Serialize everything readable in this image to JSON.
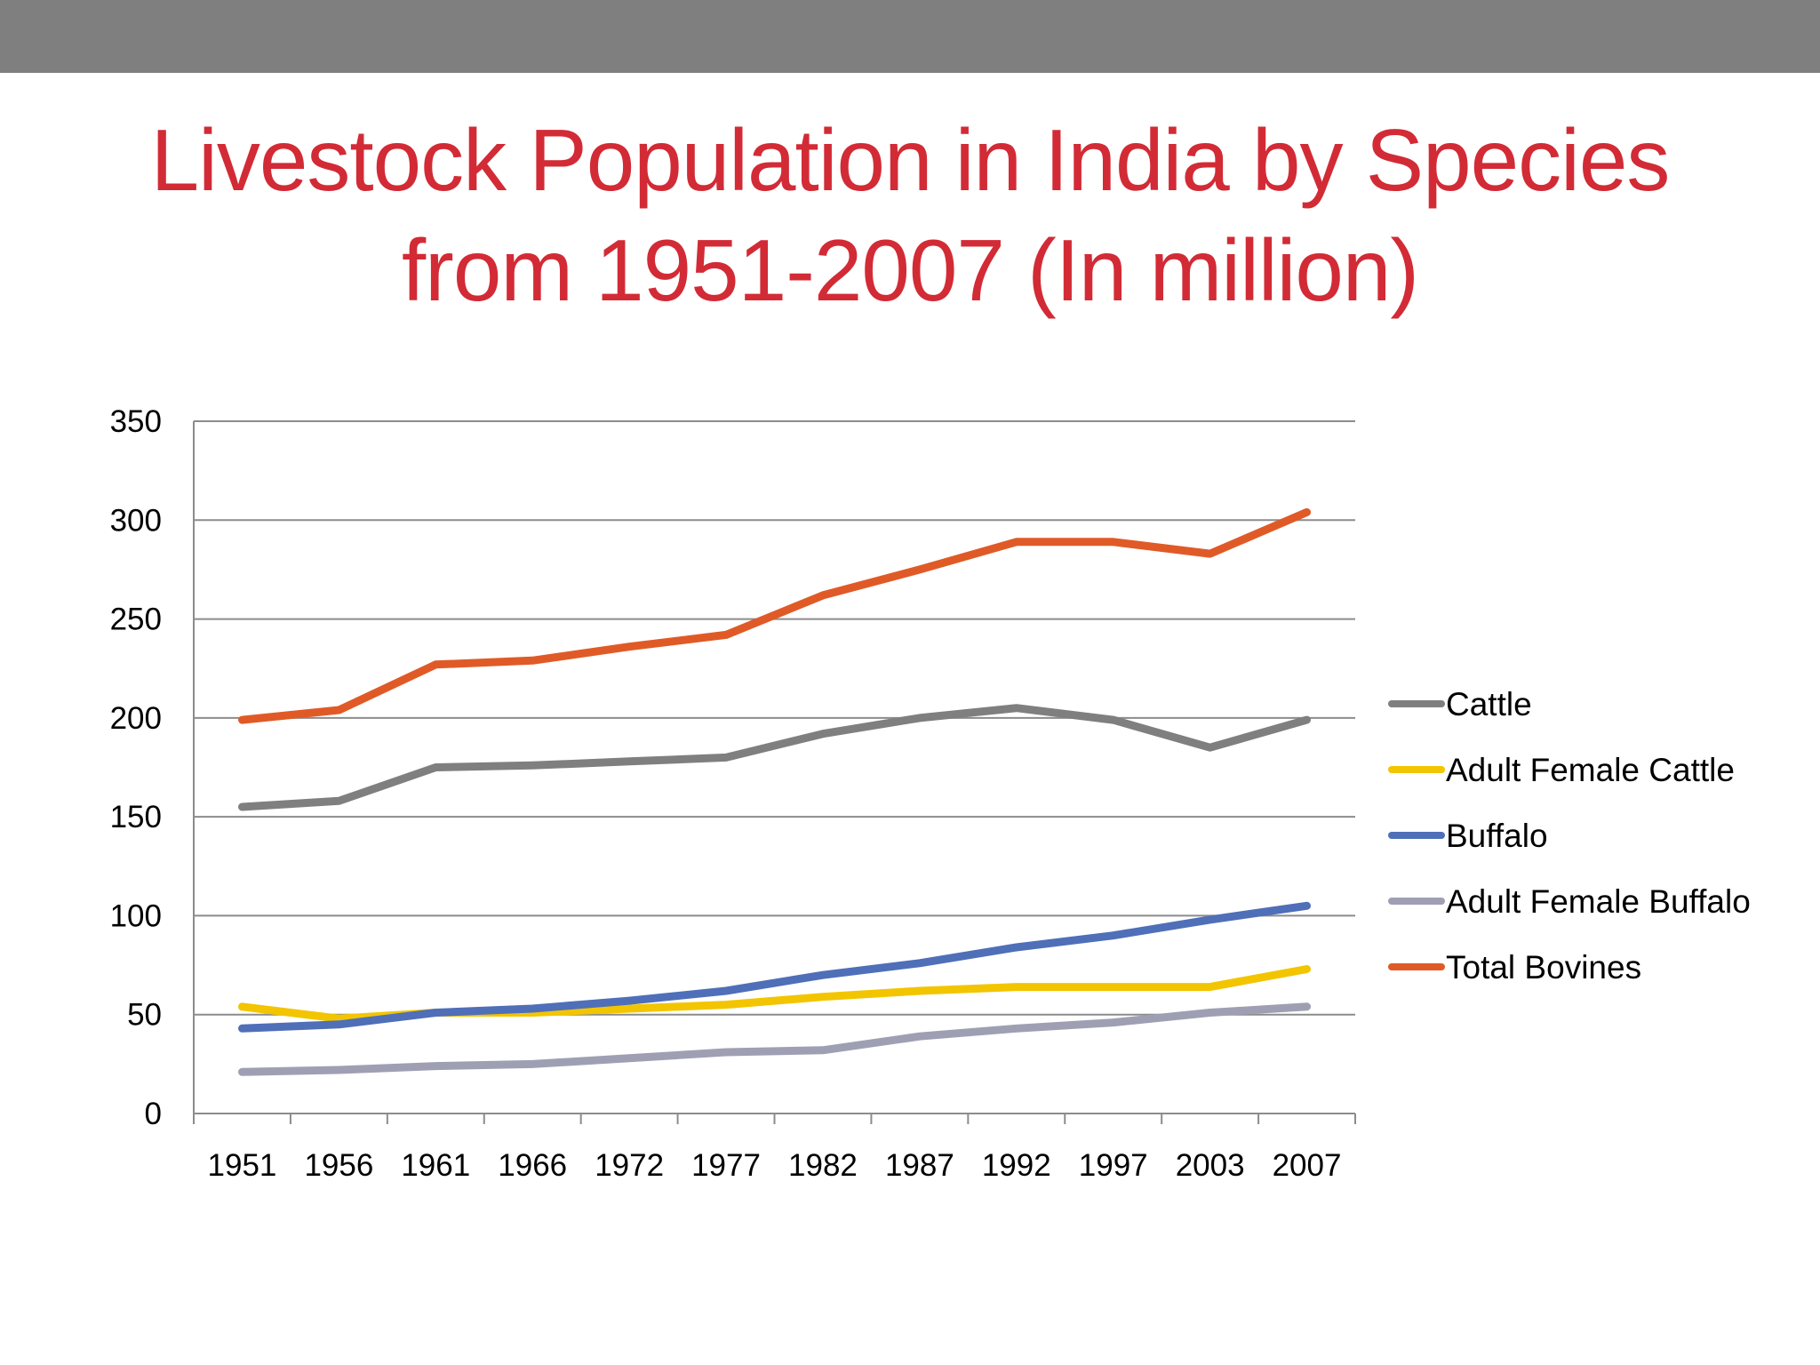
{
  "slide": {
    "title_line1": "Livestock Population in India by Species",
    "title_line2": "from 1951-2007 (In million)",
    "title_color": "#d22b36",
    "top_bar_color": "#7f7f7f"
  },
  "chart_data": {
    "type": "line",
    "title": "Livestock Population in India by Species from 1951-2007 (In million)",
    "xlabel": "",
    "ylabel": "",
    "ylim": [
      0,
      350
    ],
    "yticks": [
      0,
      50,
      100,
      150,
      200,
      250,
      300,
      350
    ],
    "grid": true,
    "legend": "right",
    "categories": [
      "1951",
      "1956",
      "1961",
      "1966",
      "1972",
      "1977",
      "1982",
      "1987",
      "1992",
      "1997",
      "2003",
      "2007"
    ],
    "series": [
      {
        "name": "Cattle",
        "color": "#7f7f7f",
        "values": [
          155,
          158,
          175,
          176,
          178,
          180,
          192,
          200,
          205,
          199,
          185,
          199
        ]
      },
      {
        "name": "Adult Female Cattle",
        "color": "#f2c500",
        "values": [
          54,
          48,
          51,
          51,
          53,
          55,
          59,
          62,
          64,
          64,
          64,
          73
        ]
      },
      {
        "name": "Buffalo",
        "color": "#4f6fb8",
        "values": [
          43,
          45,
          51,
          53,
          57,
          62,
          70,
          76,
          84,
          90,
          98,
          105
        ]
      },
      {
        "name": "Adult Female Buffalo",
        "color": "#9f9fb4",
        "values": [
          21,
          22,
          24,
          25,
          28,
          31,
          32,
          39,
          43,
          46,
          51,
          54
        ]
      },
      {
        "name": "Total Bovines",
        "color": "#e05a27",
        "values": [
          199,
          204,
          227,
          229,
          236,
          242,
          262,
          275,
          289,
          289,
          283,
          304
        ]
      }
    ]
  }
}
